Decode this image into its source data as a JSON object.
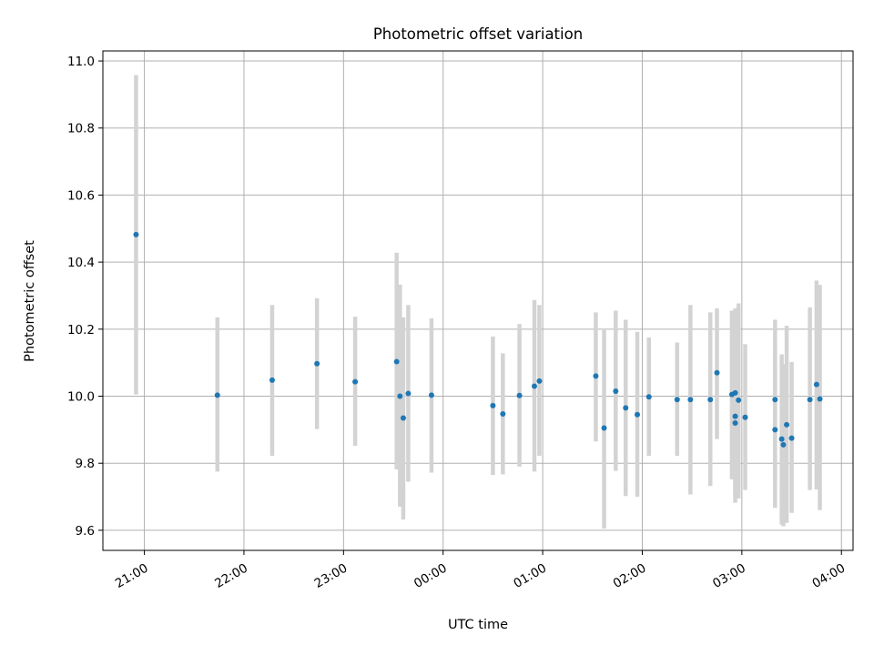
{
  "chart_data": {
    "type": "scatter",
    "title": "Photometric offset variation",
    "xlabel": "UTC time",
    "ylabel": "Photometric offset",
    "x_ticks": [
      "21:00",
      "22:00",
      "23:00",
      "00:00",
      "01:00",
      "02:00",
      "03:00",
      "04:00"
    ],
    "y_ticks": [
      "9.6",
      "9.8",
      "10.0",
      "10.2",
      "10.4",
      "10.6",
      "10.8",
      "11.0"
    ],
    "xlim": [
      "20:35",
      "04:07"
    ],
    "ylim": [
      9.54,
      11.03
    ],
    "grid": true,
    "marker_color": "#1f77b4",
    "errorbar_color": "#d3d3d3",
    "points": [
      {
        "t": "20:55",
        "y": 10.482,
        "lo": 10.005,
        "hi": 10.958
      },
      {
        "t": "21:44",
        "y": 10.003,
        "lo": 9.775,
        "hi": 10.235
      },
      {
        "t": "22:17",
        "y": 10.048,
        "lo": 9.822,
        "hi": 10.272
      },
      {
        "t": "22:44",
        "y": 10.097,
        "lo": 9.902,
        "hi": 10.292
      },
      {
        "t": "23:07",
        "y": 10.043,
        "lo": 9.852,
        "hi": 10.237
      },
      {
        "t": "23:32",
        "y": 10.103,
        "lo": 9.782,
        "hi": 10.428
      },
      {
        "t": "23:34",
        "y": 10.0,
        "lo": 9.67,
        "hi": 10.333
      },
      {
        "t": "23:36",
        "y": 9.935,
        "lo": 9.632,
        "hi": 10.235
      },
      {
        "t": "23:39",
        "y": 10.008,
        "lo": 9.745,
        "hi": 10.272
      },
      {
        "t": "23:53",
        "y": 10.003,
        "lo": 9.772,
        "hi": 10.232
      },
      {
        "t": "00:30",
        "y": 9.972,
        "lo": 9.765,
        "hi": 10.178
      },
      {
        "t": "00:36",
        "y": 9.947,
        "lo": 9.767,
        "hi": 10.128
      },
      {
        "t": "00:46",
        "y": 10.002,
        "lo": 9.79,
        "hi": 10.215
      },
      {
        "t": "00:55",
        "y": 10.03,
        "lo": 9.775,
        "hi": 10.287
      },
      {
        "t": "00:58",
        "y": 10.045,
        "lo": 9.822,
        "hi": 10.272
      },
      {
        "t": "01:32",
        "y": 10.06,
        "lo": 9.865,
        "hi": 10.25
      },
      {
        "t": "01:37",
        "y": 9.905,
        "lo": 9.605,
        "hi": 10.197
      },
      {
        "t": "01:44",
        "y": 10.015,
        "lo": 9.777,
        "hi": 10.255
      },
      {
        "t": "01:50",
        "y": 9.965,
        "lo": 9.702,
        "hi": 10.228
      },
      {
        "t": "01:57",
        "y": 9.945,
        "lo": 9.7,
        "hi": 10.192
      },
      {
        "t": "02:04",
        "y": 9.998,
        "lo": 9.822,
        "hi": 10.175
      },
      {
        "t": "02:21",
        "y": 9.99,
        "lo": 9.822,
        "hi": 10.16
      },
      {
        "t": "02:29",
        "y": 9.99,
        "lo": 9.707,
        "hi": 10.272
      },
      {
        "t": "02:41",
        "y": 9.99,
        "lo": 9.732,
        "hi": 10.25
      },
      {
        "t": "02:45",
        "y": 10.07,
        "lo": 9.872,
        "hi": 10.262
      },
      {
        "t": "02:54",
        "y": 10.005,
        "lo": 9.752,
        "hi": 10.255
      },
      {
        "t": "02:56",
        "y": 10.01,
        "lo": 9.752,
        "hi": 10.262
      },
      {
        "t": "02:56",
        "y": 9.94,
        "lo": 9.702,
        "hi": 10.185
      },
      {
        "t": "02:56",
        "y": 9.92,
        "lo": 9.682,
        "hi": 10.16
      },
      {
        "t": "02:58",
        "y": 9.988,
        "lo": 9.695,
        "hi": 10.277
      },
      {
        "t": "03:02",
        "y": 9.937,
        "lo": 9.72,
        "hi": 10.155
      },
      {
        "t": "03:20",
        "y": 9.99,
        "lo": 9.745,
        "hi": 10.228
      },
      {
        "t": "03:20",
        "y": 9.9,
        "lo": 9.667,
        "hi": 10.14
      },
      {
        "t": "03:24",
        "y": 9.872,
        "lo": 9.617,
        "hi": 10.125
      },
      {
        "t": "03:25",
        "y": 9.855,
        "lo": 9.612,
        "hi": 10.095
      },
      {
        "t": "03:27",
        "y": 9.915,
        "lo": 9.622,
        "hi": 10.21
      },
      {
        "t": "03:30",
        "y": 9.875,
        "lo": 9.652,
        "hi": 10.102
      },
      {
        "t": "03:41",
        "y": 9.99,
        "lo": 9.72,
        "hi": 10.265
      },
      {
        "t": "03:45",
        "y": 10.035,
        "lo": 9.722,
        "hi": 10.345
      },
      {
        "t": "03:47",
        "y": 9.992,
        "lo": 9.66,
        "hi": 10.332
      }
    ]
  }
}
